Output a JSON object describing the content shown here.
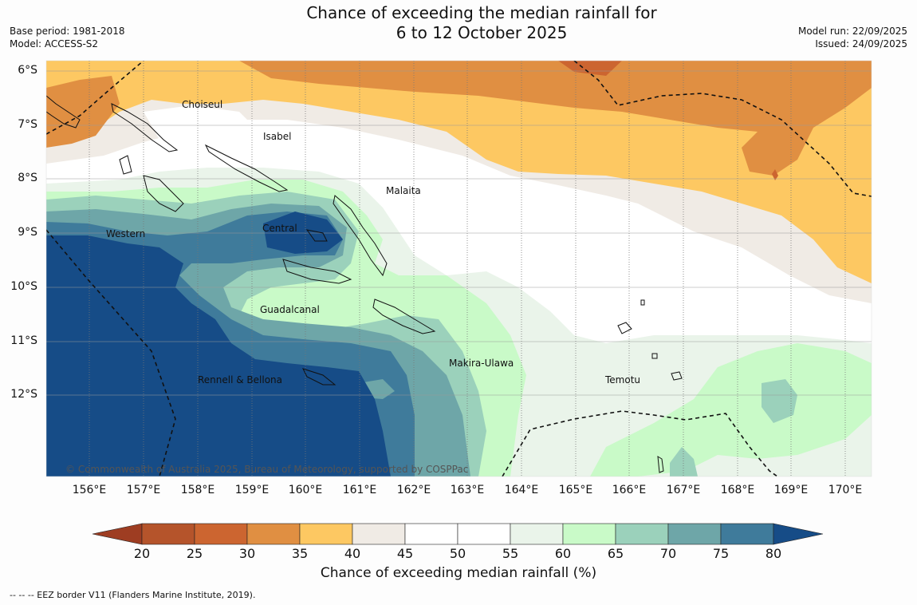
{
  "title_line1": "Chance of exceeding the median rainfall for",
  "title_line2": "6 to 12 October 2025",
  "meta_left": {
    "base_period": "Base period: 1981-2018",
    "model": "Model: ACCESS-S2"
  },
  "meta_right": {
    "model_run": "Model run: 22/09/2025",
    "issued": "Issued: 24/09/2025"
  },
  "lon_labels": [
    "156°E",
    "157°E",
    "158°E",
    "159°E",
    "160°E",
    "161°E",
    "162°E",
    "163°E",
    "164°E",
    "165°E",
    "166°E",
    "167°E",
    "168°E",
    "169°E",
    "170°E"
  ],
  "lat_labels": [
    "6°S",
    "7°S",
    "8°S",
    "9°S",
    "10°S",
    "11°S",
    "12°S"
  ],
  "places": {
    "choiseul": "Choiseul",
    "isabel": "Isabel",
    "malaita": "Malaita",
    "central": "Central",
    "western": "Western",
    "guadalcanal": "Guadalcanal",
    "makira": "Makira-Ulawa",
    "rennell": "Rennell & Bellona",
    "temotu": "Temotu"
  },
  "copyright": "© Commonwealth of Australia 2025, Bureau of Meteorology, supported by COSPPac",
  "colorbar": {
    "ticks": [
      "20",
      "25",
      "30",
      "35",
      "40",
      "45",
      "50",
      "55",
      "60",
      "65",
      "70",
      "75",
      "80"
    ],
    "label": "Chance of exceeding median rainfall (%)",
    "colors": [
      "#9e3d22",
      "#b5542b",
      "#cc6530",
      "#e08f42",
      "#fdc862",
      "#f0ebe5",
      "#ffffff",
      "#ffffff",
      "#eaf4ea",
      "#c9fac8",
      "#9bd1bb",
      "#6ea6a8",
      "#3f7b9b",
      "#164c87"
    ]
  },
  "footnote": "--  --  -- EEZ border V11 (Flanders Marine Institute, 2019)."
}
